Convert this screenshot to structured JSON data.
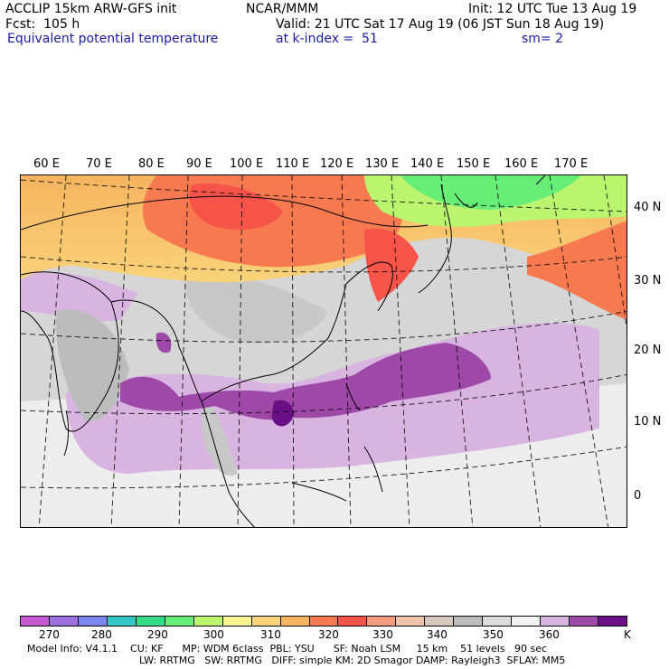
{
  "header": {
    "model": "ACCLIP 15km ARW-GFS init",
    "center": "NCAR/MMM",
    "init": "Init: 12 UTC Tue 13 Aug 19",
    "fcst": "Fcst:  105 h",
    "valid": "Valid: 21 UTC Sat 17 Aug 19 (06 JST Sun 18 Aug 19)",
    "field": "Equivalent potential temperature",
    "level": "at k-index =  51",
    "smooth": "sm= 2"
  },
  "map": {
    "lon_labels": [
      "60 E",
      "70 E",
      "80 E",
      "90 E",
      "100 E",
      "110 E",
      "120 E",
      "130 E",
      "140 E",
      "150 E",
      "160 E",
      "170 E"
    ],
    "lat_labels": [
      "40 N",
      "30 N",
      "20 N",
      "10 N",
      "0"
    ]
  },
  "colorbar": {
    "unit": "K",
    "tick_labels": [
      "270",
      "280",
      "290",
      "300",
      "310",
      "320",
      "330",
      "340",
      "350",
      "360"
    ],
    "colors": [
      "#c659d0",
      "#9d6fe0",
      "#7b85ec",
      "#33c6c7",
      "#33dd88",
      "#66ee77",
      "#bbf56f",
      "#f8f591",
      "#f8d37a",
      "#f6b45f",
      "#f7794f",
      "#f65449",
      "#f29b80",
      "#f0c2a7",
      "#d6c8bf",
      "#bcbcbc",
      "#dcdcdc",
      "#f2f2f2",
      "#d8b4e0",
      "#9e48a8",
      "#6a0f86"
    ]
  },
  "footer": {
    "line1": "Model Info: V4.1.1    CU: KF      MP: WDM 6class  PBL: YSU      SF: Noah LSM     15 km    51 levels   90 sec",
    "line2": "LW: RRTMG   SW: RRTMG   DIFF: simple KM: 2D Smagor DAMP: Rayleigh3  SFLAY: MM5"
  }
}
